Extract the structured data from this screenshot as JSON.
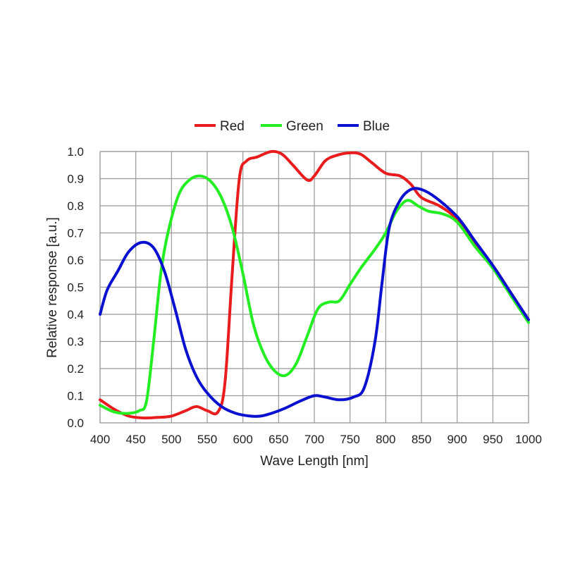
{
  "chart_data": {
    "type": "line",
    "title": "",
    "xlabel": "Wave Length [nm]",
    "ylabel": "Relative response [a.u.]",
    "xlim": [
      400,
      1000
    ],
    "ylim": [
      0,
      1.0
    ],
    "grid": true,
    "legend_position": "top-center",
    "x_ticks": [
      "400",
      "450",
      "500",
      "550",
      "600",
      "650",
      "700",
      "750",
      "800",
      "850",
      "900",
      "950",
      "1000"
    ],
    "y_ticks": [
      "0.0",
      "0.1",
      "0.2",
      "0.3",
      "0.4",
      "0.5",
      "0.6",
      "0.7",
      "0.8",
      "0.9",
      "1.0"
    ],
    "series": [
      {
        "name": "Red",
        "color": "#e81c1c",
        "x": [
          400,
          420,
          440,
          460,
          480,
          500,
          520,
          535,
          550,
          565,
          575,
          585,
          595,
          605,
          620,
          640,
          655,
          670,
          690,
          700,
          715,
          730,
          750,
          765,
          780,
          800,
          820,
          835,
          850,
          875,
          900,
          925,
          950,
          975,
          1000
        ],
        "y": [
          0.085,
          0.05,
          0.025,
          0.018,
          0.02,
          0.025,
          0.045,
          0.06,
          0.045,
          0.04,
          0.15,
          0.55,
          0.9,
          0.965,
          0.98,
          1.0,
          0.99,
          0.95,
          0.895,
          0.91,
          0.965,
          0.985,
          0.995,
          0.99,
          0.96,
          0.92,
          0.91,
          0.88,
          0.83,
          0.8,
          0.75,
          0.66,
          0.58,
          0.48,
          0.38
        ]
      },
      {
        "name": "Green",
        "color": "#22ee22",
        "x": [
          400,
          420,
          440,
          455,
          465,
          475,
          485,
          495,
          510,
          525,
          540,
          555,
          570,
          585,
          600,
          615,
          630,
          645,
          660,
          675,
          690,
          705,
          720,
          735,
          750,
          765,
          785,
          800,
          815,
          830,
          845,
          860,
          880,
          900,
          925,
          950,
          975,
          1000
        ],
        "y": [
          0.065,
          0.04,
          0.035,
          0.045,
          0.08,
          0.3,
          0.55,
          0.7,
          0.84,
          0.895,
          0.91,
          0.89,
          0.83,
          0.72,
          0.55,
          0.36,
          0.25,
          0.19,
          0.175,
          0.22,
          0.32,
          0.42,
          0.445,
          0.45,
          0.51,
          0.57,
          0.64,
          0.7,
          0.78,
          0.82,
          0.8,
          0.78,
          0.77,
          0.74,
          0.65,
          0.57,
          0.47,
          0.37
        ]
      },
      {
        "name": "Blue",
        "color": "#0a10d0",
        "x": [
          400,
          410,
          425,
          440,
          458,
          475,
          490,
          505,
          520,
          535,
          550,
          570,
          590,
          610,
          625,
          640,
          660,
          680,
          700,
          715,
          735,
          755,
          770,
          785,
          795,
          805,
          820,
          835,
          850,
          870,
          900,
          925,
          950,
          975,
          1000
        ],
        "y": [
          0.4,
          0.49,
          0.56,
          0.63,
          0.665,
          0.645,
          0.56,
          0.42,
          0.27,
          0.17,
          0.11,
          0.06,
          0.035,
          0.025,
          0.025,
          0.035,
          0.055,
          0.08,
          0.1,
          0.095,
          0.085,
          0.095,
          0.13,
          0.3,
          0.52,
          0.72,
          0.82,
          0.86,
          0.86,
          0.83,
          0.76,
          0.67,
          0.58,
          0.48,
          0.38
        ]
      }
    ]
  }
}
